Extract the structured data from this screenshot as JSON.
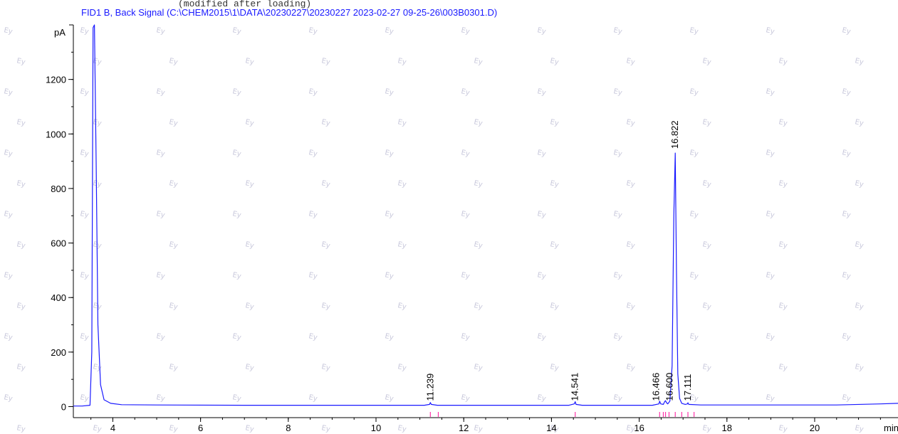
{
  "header_fragment": "(modified after loading)",
  "watermark_text": "Ey",
  "colors": {
    "trace": "#1a1aff",
    "title": "#1a1aff",
    "axes": "#000000",
    "marker": "#ff33aa",
    "watermark": "#c9c9dc"
  },
  "chart_data": {
    "type": "line",
    "title": "FID1 B, Back Signal (C:\\CHEM2015\\1\\DATA\\20230227\\20230227 2023-02-27 09-25-26\\003B0301.D)",
    "xlabel": "min",
    "ylabel": "pA",
    "xlim": [
      3.1,
      21.9
    ],
    "ylim": [
      -30,
      1400
    ],
    "xticks": [
      "4",
      "6",
      "8",
      "10",
      "12",
      "14",
      "16",
      "18",
      "20"
    ],
    "yticks": [
      "0",
      "200",
      "400",
      "600",
      "800",
      "1000",
      "1200"
    ],
    "grid": false,
    "series": [
      {
        "x": [
          3.1,
          3.3,
          3.48,
          3.52,
          3.55,
          3.58,
          3.62,
          3.66,
          3.72,
          3.8,
          3.95,
          4.2,
          5,
          7,
          9,
          10.5,
          11.1,
          11.22,
          11.239,
          11.26,
          11.4,
          12.5,
          14.4,
          14.52,
          14.541,
          14.56,
          14.7,
          16.3,
          16.45,
          16.466,
          16.49,
          16.55,
          16.58,
          16.6,
          16.62,
          16.65,
          16.7,
          16.75,
          16.79,
          16.822,
          16.85,
          16.88,
          16.92,
          16.97,
          17.05,
          17.1,
          17.111,
          17.13,
          17.4,
          19,
          20.5,
          21.5,
          21.9
        ],
        "y": [
          2,
          2,
          5,
          200,
          1390,
          1400,
          900,
          300,
          80,
          25,
          12,
          7,
          6,
          5,
          5,
          5,
          5,
          8,
          15,
          8,
          5,
          5,
          5,
          10,
          18,
          8,
          5,
          5,
          10,
          20,
          10,
          8,
          18,
          22,
          15,
          10,
          20,
          150,
          700,
          930,
          500,
          120,
          30,
          12,
          8,
          10,
          14,
          8,
          6,
          6,
          6,
          10,
          12
        ]
      }
    ],
    "peak_labels": [
      {
        "rt": 11.239,
        "text": "11.239"
      },
      {
        "rt": 14.541,
        "text": "14.541"
      },
      {
        "rt": 16.466,
        "text": "16.466"
      },
      {
        "rt": 16.6,
        "text": "16.600"
      },
      {
        "rt": 16.822,
        "text": "16.822"
      },
      {
        "rt": 17.111,
        "text": "17.111"
      }
    ],
    "event_markers": [
      11.239,
      11.42,
      14.541,
      16.466,
      16.55,
      16.6,
      16.68,
      16.822,
      16.97,
      17.111,
      17.25
    ]
  }
}
